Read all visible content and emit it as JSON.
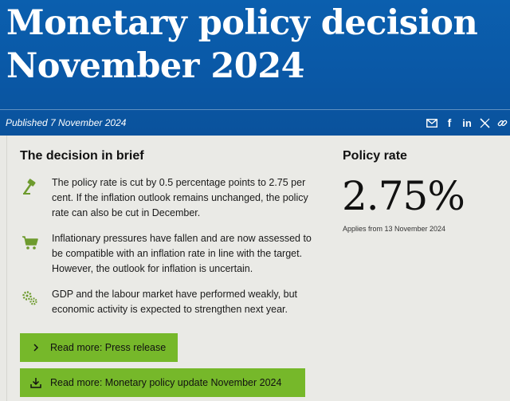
{
  "header": {
    "title_line1": "Monetary policy decision",
    "title_line2": "November 2024",
    "published": "Published 7 November 2024",
    "share_icons": [
      "email-icon",
      "facebook-icon",
      "linkedin-icon",
      "x-icon",
      "link-icon"
    ],
    "share_labels": {
      "facebook": "f",
      "linkedin": "in"
    }
  },
  "brief": {
    "title": "The decision in brief",
    "items": [
      {
        "icon": "gavel-icon",
        "text": "The policy rate is cut by 0.5 percentage points to 2.75 per cent. If the inflation outlook remains unchanged, the policy rate can also be cut in December."
      },
      {
        "icon": "shopping-cart-icon",
        "text": "Inflationary pressures have fallen and are now assessed to be compatible with an inflation rate in line with the target. However, the outlook for inflation is uncertain."
      },
      {
        "icon": "gears-icon",
        "text": "GDP and the labour market have performed weakly, but economic activity is expected to strengthen next year."
      }
    ]
  },
  "policy_rate": {
    "label": "Policy rate",
    "value": "2.75%",
    "applies": "Applies from 13 November 2024"
  },
  "buttons": {
    "press_release": "Read more: Press release",
    "policy_update": "Read more: Monetary policy update November 2024"
  },
  "colors": {
    "header_blue": "#0b5fae",
    "button_green": "#76b82a",
    "page_background": "#e9e9e5"
  }
}
